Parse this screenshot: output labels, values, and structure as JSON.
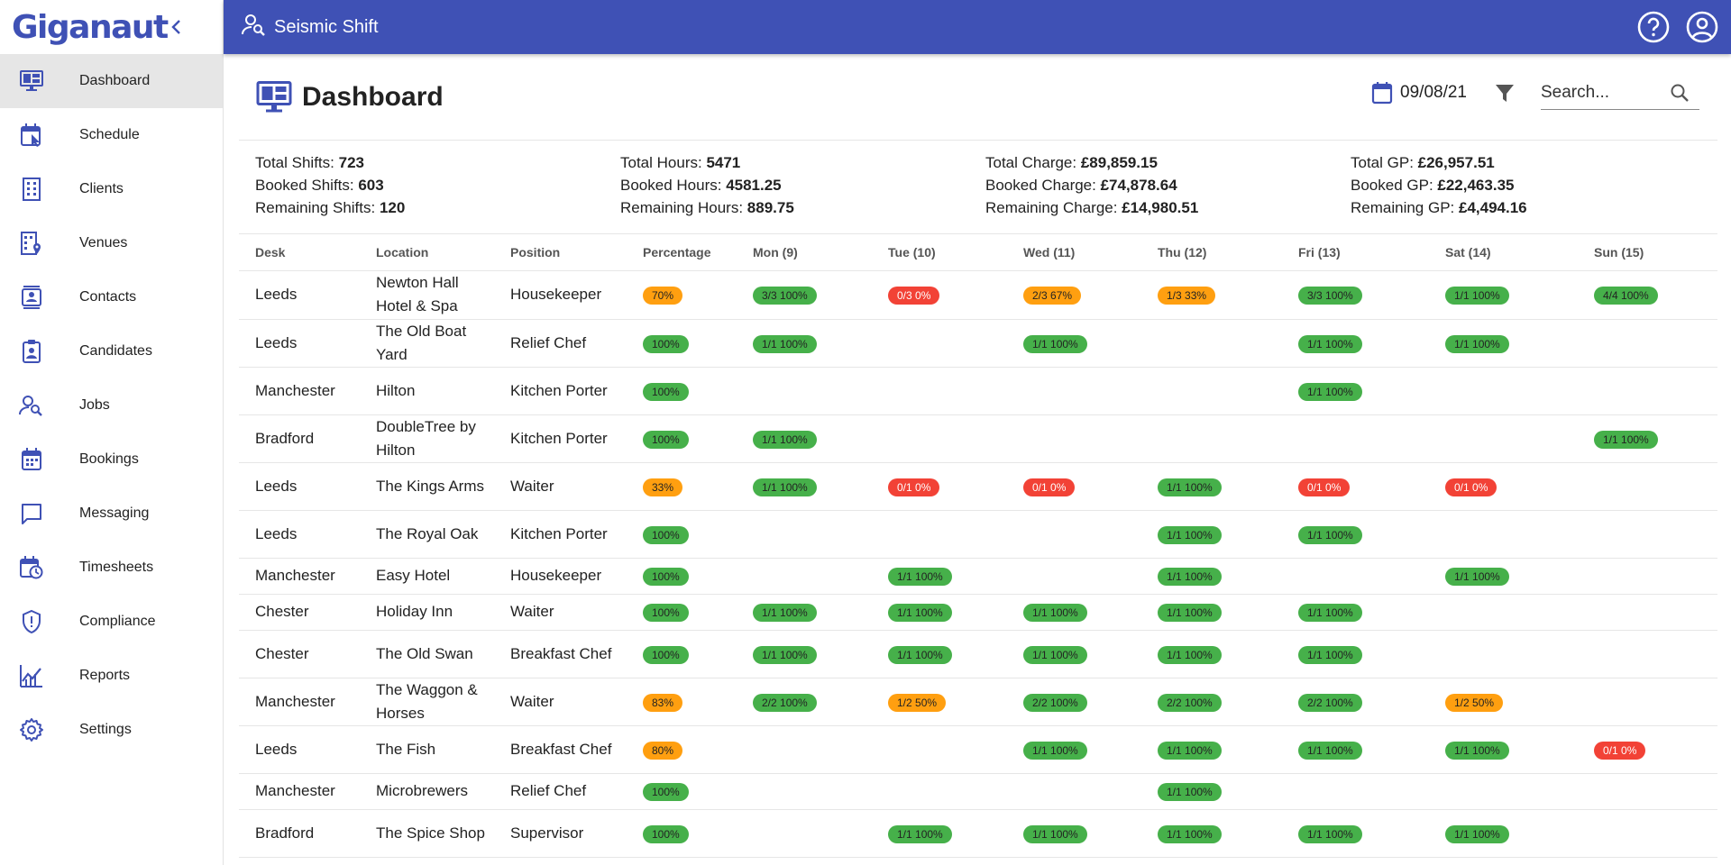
{
  "brand": {
    "name": "Giganaut"
  },
  "topbar": {
    "title": "Seismic Shift"
  },
  "sidebar": {
    "items": [
      {
        "label": "Dashboard",
        "icon": "dashboard-icon",
        "active": true
      },
      {
        "label": "Schedule",
        "icon": "schedule-icon"
      },
      {
        "label": "Clients",
        "icon": "clients-icon"
      },
      {
        "label": "Venues",
        "icon": "venues-icon"
      },
      {
        "label": "Contacts",
        "icon": "contacts-icon"
      },
      {
        "label": "Candidates",
        "icon": "candidates-icon"
      },
      {
        "label": "Jobs",
        "icon": "jobs-icon"
      },
      {
        "label": "Bookings",
        "icon": "bookings-icon"
      },
      {
        "label": "Messaging",
        "icon": "messaging-icon"
      },
      {
        "label": "Timesheets",
        "icon": "timesheets-icon"
      },
      {
        "label": "Compliance",
        "icon": "compliance-icon"
      },
      {
        "label": "Reports",
        "icon": "reports-icon"
      },
      {
        "label": "Settings",
        "icon": "settings-icon"
      }
    ]
  },
  "page": {
    "title": "Dashboard",
    "date": "09/08/21",
    "search_placeholder": "Search..."
  },
  "stats": {
    "shifts": [
      {
        "label": "Total Shifts: ",
        "value": "723"
      },
      {
        "label": "Booked Shifts: ",
        "value": "603"
      },
      {
        "label": "Remaining Shifts: ",
        "value": "120"
      }
    ],
    "hours": [
      {
        "label": "Total Hours: ",
        "value": "5471"
      },
      {
        "label": "Booked Hours: ",
        "value": "4581.25"
      },
      {
        "label": "Remaining Hours: ",
        "value": "889.75"
      }
    ],
    "charge": [
      {
        "label": "Total Charge: ",
        "value": "£89,859.15"
      },
      {
        "label": "Booked Charge: ",
        "value": "£74,878.64"
      },
      {
        "label": "Remaining Charge: ",
        "value": "£14,980.51"
      }
    ],
    "gp": [
      {
        "label": "Total GP: ",
        "value": "£26,957.51"
      },
      {
        "label": "Booked GP: ",
        "value": "£22,463.35"
      },
      {
        "label": "Remaining GP: ",
        "value": "£4,494.16"
      }
    ]
  },
  "colors": {
    "primary": "#3f51b5",
    "green": "#46b04a",
    "orange": "#ff9f10",
    "red": "#f24236"
  },
  "table": {
    "columns": [
      "Desk",
      "Location",
      "Position",
      "Percentage",
      "Mon (9)",
      "Tue (10)",
      "Wed (11)",
      "Thu (12)",
      "Fri (13)",
      "Sat (14)",
      "Sun (15)"
    ],
    "rows": [
      {
        "desk": "Leeds",
        "location": "Newton Hall Hotel & Spa",
        "position": "Housekeeper",
        "pct": {
          "text": "70%",
          "status": "orange"
        },
        "days": [
          {
            "text": "3/3 100%",
            "status": "green"
          },
          {
            "text": "0/3 0%",
            "status": "red"
          },
          {
            "text": "2/3 67%",
            "status": "orange"
          },
          {
            "text": "1/3 33%",
            "status": "orange"
          },
          {
            "text": "3/3 100%",
            "status": "green"
          },
          {
            "text": "1/1 100%",
            "status": "green"
          },
          {
            "text": "4/4 100%",
            "status": "green"
          }
        ]
      },
      {
        "desk": "Leeds",
        "location": "The Old Boat Yard",
        "position": "Relief Chef",
        "pct": {
          "text": "100%",
          "status": "green"
        },
        "days": [
          {
            "text": "1/1 100%",
            "status": "green"
          },
          null,
          {
            "text": "1/1 100%",
            "status": "green"
          },
          null,
          {
            "text": "1/1 100%",
            "status": "green"
          },
          {
            "text": "1/1 100%",
            "status": "green"
          },
          null
        ]
      },
      {
        "desk": "Manchester",
        "location": "Hilton",
        "position": "Kitchen Porter",
        "pct": {
          "text": "100%",
          "status": "green"
        },
        "days": [
          null,
          null,
          null,
          null,
          {
            "text": "1/1 100%",
            "status": "green"
          },
          null,
          null
        ]
      },
      {
        "desk": "Bradford",
        "location": "DoubleTree by Hilton",
        "position": "Kitchen Porter",
        "pct": {
          "text": "100%",
          "status": "green"
        },
        "days": [
          {
            "text": "1/1 100%",
            "status": "green"
          },
          null,
          null,
          null,
          null,
          null,
          {
            "text": "1/1 100%",
            "status": "green"
          }
        ]
      },
      {
        "desk": "Leeds",
        "location": "The Kings Arms",
        "position": "Waiter",
        "pct": {
          "text": "33%",
          "status": "orange"
        },
        "days": [
          {
            "text": "1/1 100%",
            "status": "green"
          },
          {
            "text": "0/1 0%",
            "status": "red"
          },
          {
            "text": "0/1 0%",
            "status": "red"
          },
          {
            "text": "1/1 100%",
            "status": "green"
          },
          {
            "text": "0/1 0%",
            "status": "red"
          },
          {
            "text": "0/1 0%",
            "status": "red"
          },
          null
        ]
      },
      {
        "desk": "Leeds",
        "location": "The Royal Oak",
        "position": "Kitchen Porter",
        "pct": {
          "text": "100%",
          "status": "green"
        },
        "days": [
          null,
          null,
          null,
          {
            "text": "1/1 100%",
            "status": "green"
          },
          {
            "text": "1/1 100%",
            "status": "green"
          },
          null,
          null
        ]
      },
      {
        "desk": "Manchester",
        "location": "Easy Hotel",
        "position": "Housekeeper",
        "pct": {
          "text": "100%",
          "status": "green"
        },
        "days": [
          null,
          {
            "text": "1/1 100%",
            "status": "green"
          },
          null,
          {
            "text": "1/1 100%",
            "status": "green"
          },
          null,
          {
            "text": "1/1 100%",
            "status": "green"
          },
          null
        ]
      },
      {
        "desk": "Chester",
        "location": "Holiday Inn",
        "position": "Waiter",
        "pct": {
          "text": "100%",
          "status": "green"
        },
        "days": [
          {
            "text": "1/1 100%",
            "status": "green"
          },
          {
            "text": "1/1 100%",
            "status": "green"
          },
          {
            "text": "1/1 100%",
            "status": "green"
          },
          {
            "text": "1/1 100%",
            "status": "green"
          },
          {
            "text": "1/1 100%",
            "status": "green"
          },
          null,
          null
        ]
      },
      {
        "desk": "Chester",
        "location": "The Old Swan",
        "position": "Breakfast Chef",
        "pct": {
          "text": "100%",
          "status": "green"
        },
        "days": [
          {
            "text": "1/1 100%",
            "status": "green"
          },
          {
            "text": "1/1 100%",
            "status": "green"
          },
          {
            "text": "1/1 100%",
            "status": "green"
          },
          {
            "text": "1/1 100%",
            "status": "green"
          },
          {
            "text": "1/1 100%",
            "status": "green"
          },
          null,
          null
        ]
      },
      {
        "desk": "Manchester",
        "location": "The Waggon & Horses",
        "position": "Waiter",
        "pct": {
          "text": "83%",
          "status": "orange"
        },
        "days": [
          {
            "text": "2/2 100%",
            "status": "green"
          },
          {
            "text": "1/2 50%",
            "status": "orange"
          },
          {
            "text": "2/2 100%",
            "status": "green"
          },
          {
            "text": "2/2 100%",
            "status": "green"
          },
          {
            "text": "2/2 100%",
            "status": "green"
          },
          {
            "text": "1/2 50%",
            "status": "orange"
          },
          null
        ]
      },
      {
        "desk": "Leeds",
        "location": "The Fish",
        "position": "Breakfast Chef",
        "pct": {
          "text": "80%",
          "status": "orange"
        },
        "days": [
          null,
          null,
          {
            "text": "1/1 100%",
            "status": "green"
          },
          {
            "text": "1/1 100%",
            "status": "green"
          },
          {
            "text": "1/1 100%",
            "status": "green"
          },
          {
            "text": "1/1 100%",
            "status": "green"
          },
          {
            "text": "0/1 0%",
            "status": "red"
          }
        ]
      },
      {
        "desk": "Manchester",
        "location": "Microbrewers",
        "position": "Relief Chef",
        "pct": {
          "text": "100%",
          "status": "green"
        },
        "days": [
          null,
          null,
          null,
          {
            "text": "1/1 100%",
            "status": "green"
          },
          null,
          null,
          null
        ]
      },
      {
        "desk": "Bradford",
        "location": "The Spice Shop",
        "position": "Supervisor",
        "pct": {
          "text": "100%",
          "status": "green"
        },
        "days": [
          null,
          {
            "text": "1/1 100%",
            "status": "green"
          },
          {
            "text": "1/1 100%",
            "status": "green"
          },
          {
            "text": "1/1 100%",
            "status": "green"
          },
          {
            "text": "1/1 100%",
            "status": "green"
          },
          {
            "text": "1/1 100%",
            "status": "green"
          },
          null
        ]
      }
    ]
  }
}
